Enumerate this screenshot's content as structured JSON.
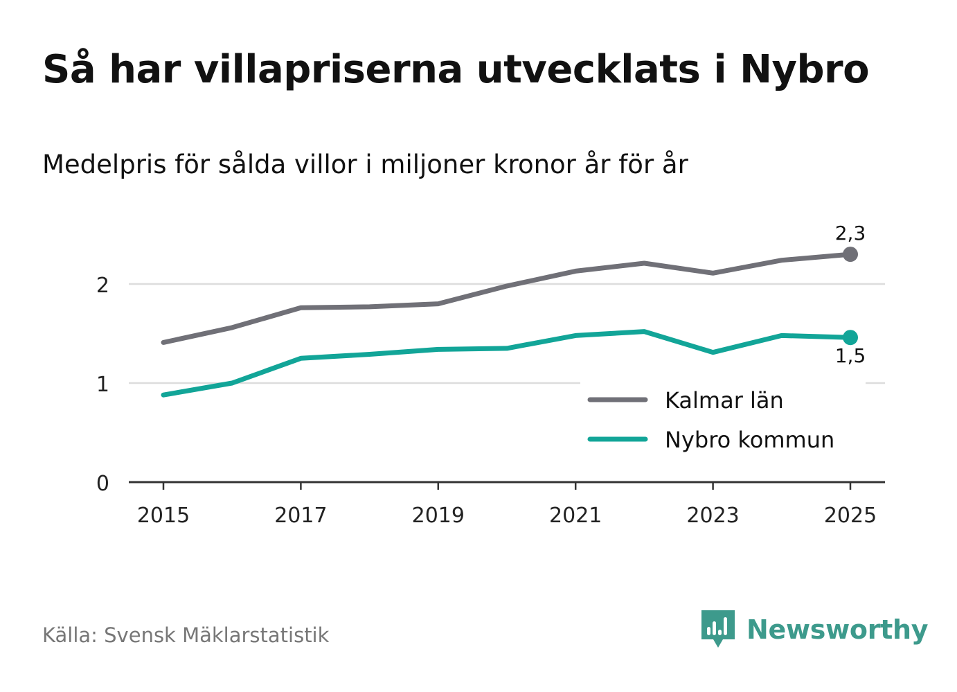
{
  "title": "Så har villapriserna utvecklats i Nybro",
  "subtitle": "Medelpris för sålda villor i miljoner kronor år för år",
  "source": "Källa: Svensk Mäklarstatistik",
  "brand": {
    "name": "Newsworthy",
    "logo_icon": "bar-chart-speech-bubble-icon",
    "color": "#3d9a8c"
  },
  "chart_data": {
    "type": "line",
    "title": "Så har villapriserna utvecklats i Nybro",
    "subtitle": "Medelpris för sålda villor i miljoner kronor år för år",
    "xlabel": "",
    "ylabel": "",
    "x": [
      2015,
      2016,
      2017,
      2018,
      2019,
      2020,
      2021,
      2022,
      2023,
      2024,
      2025
    ],
    "x_ticks": [
      "2015",
      "2017",
      "2019",
      "2021",
      "2023",
      "2025"
    ],
    "y_ticks": [
      "0",
      "1",
      "2"
    ],
    "ylim": [
      0,
      2.5
    ],
    "grid": true,
    "legend_position": "bottom-right",
    "series": [
      {
        "name": "Kalmar län",
        "color": "#707077",
        "values": [
          1.41,
          1.56,
          1.76,
          1.77,
          1.8,
          1.98,
          2.13,
          2.21,
          2.11,
          2.24,
          2.3
        ],
        "end_label": "2,3",
        "end_label_position": "above"
      },
      {
        "name": "Nybro kommun",
        "color": "#12a598",
        "values": [
          0.88,
          1.0,
          1.25,
          1.29,
          1.34,
          1.35,
          1.48,
          1.52,
          1.31,
          1.48,
          1.46
        ],
        "end_label": "1,5",
        "end_label_position": "below"
      }
    ]
  }
}
